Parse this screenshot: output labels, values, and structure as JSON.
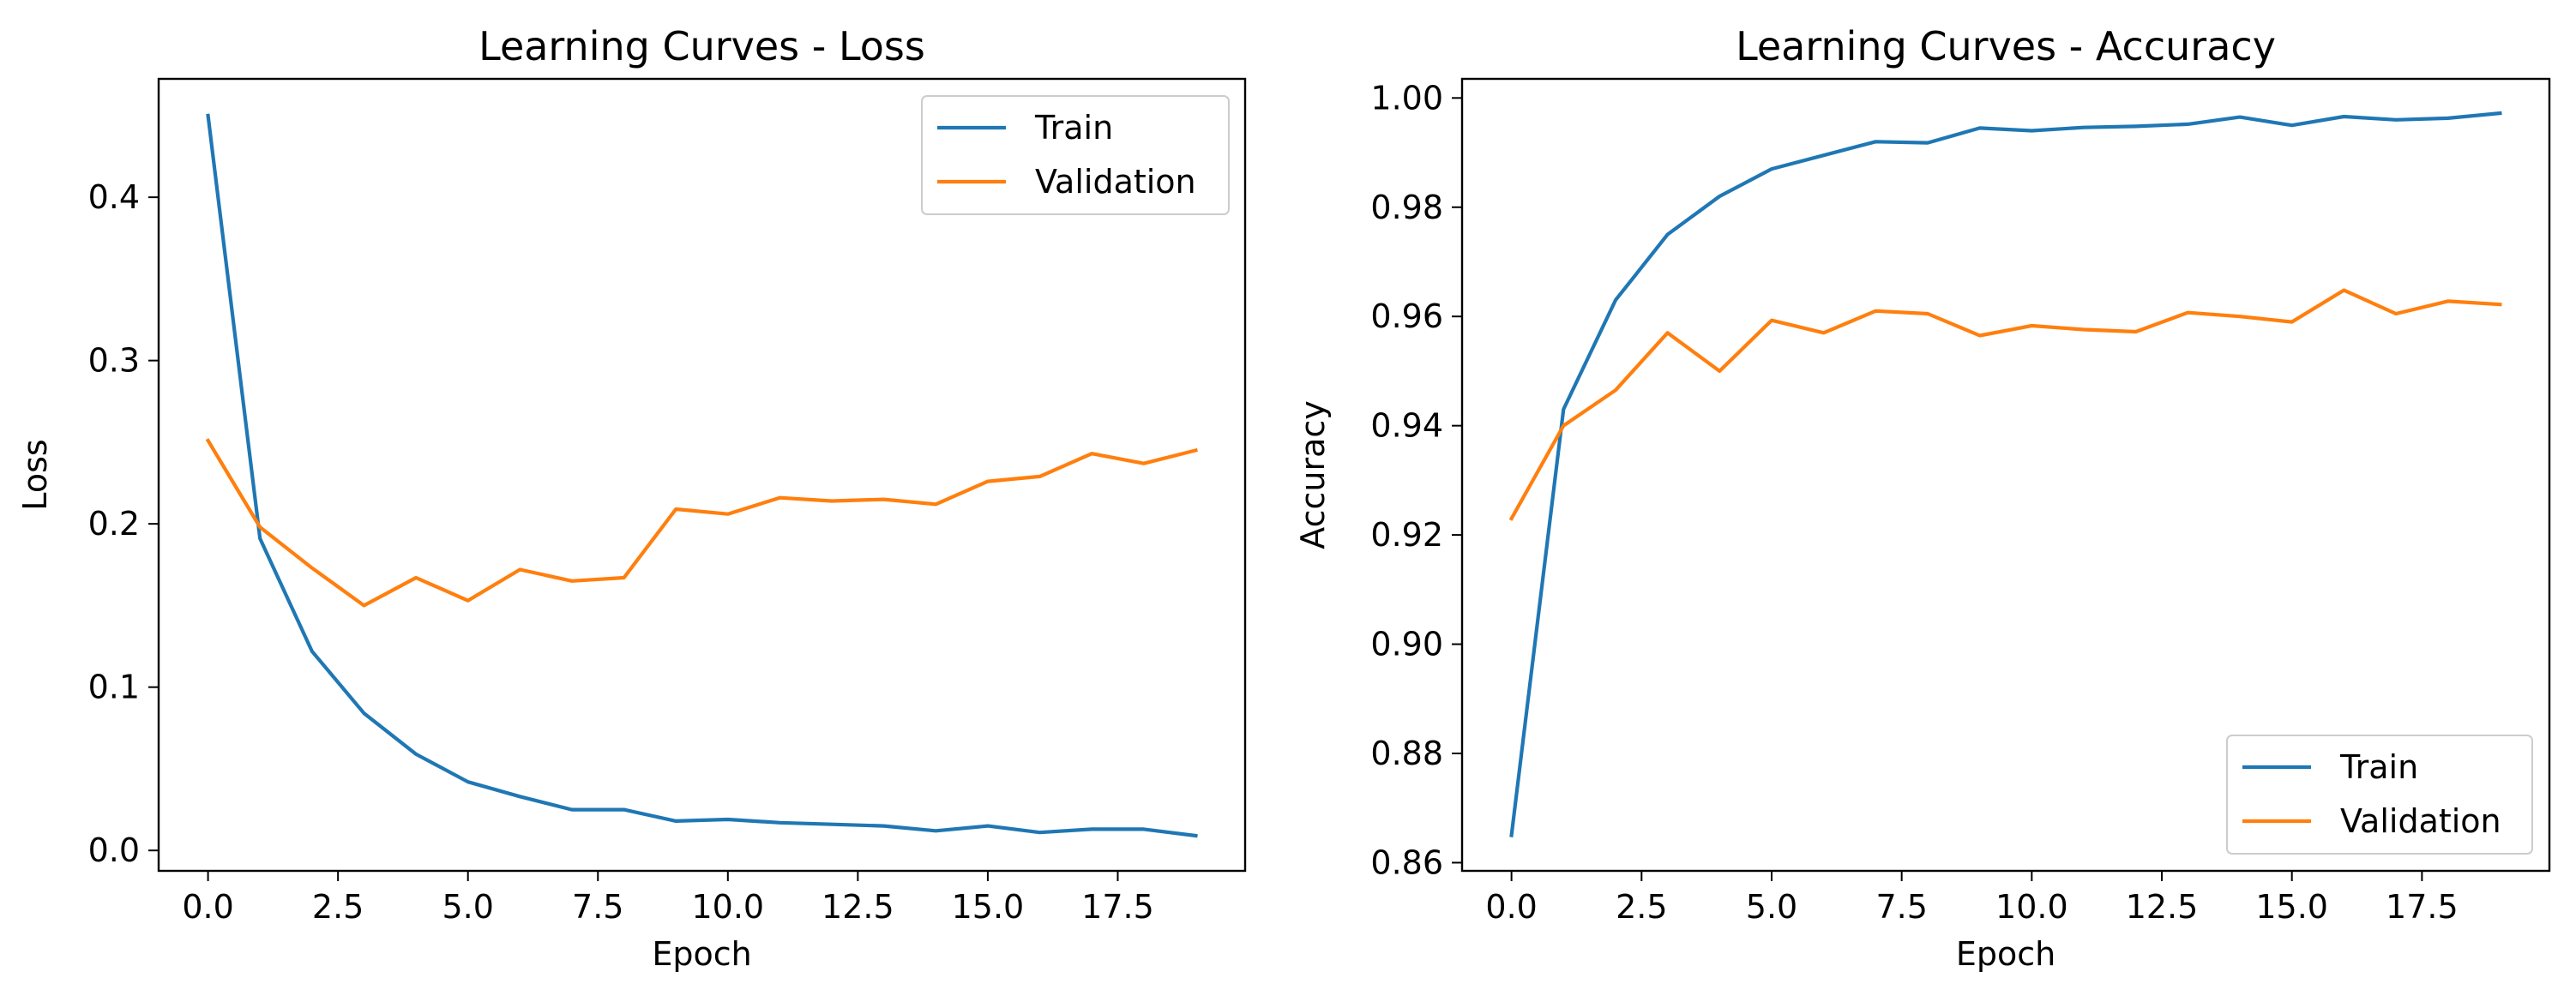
{
  "chart_data": [
    {
      "type": "line",
      "title": "Learning Curves - Loss",
      "xlabel": "Epoch",
      "ylabel": "Loss",
      "xlim": [
        -0.95,
        19.95
      ],
      "ylim": [
        -0.0125,
        0.4725
      ],
      "xticks": [
        0.0,
        2.5,
        5.0,
        7.5,
        10.0,
        12.5,
        15.0,
        17.5
      ],
      "xtick_labels": [
        "0.0",
        "2.5",
        "5.0",
        "7.5",
        "10.0",
        "12.5",
        "15.0",
        "17.5"
      ],
      "yticks": [
        0.0,
        0.1,
        0.2,
        0.3,
        0.4
      ],
      "ytick_labels": [
        "0.0",
        "0.1",
        "0.2",
        "0.3",
        "0.4"
      ],
      "legend": "top-right",
      "grid": false,
      "x": [
        0,
        1,
        2,
        3,
        4,
        5,
        6,
        7,
        8,
        9,
        10,
        11,
        12,
        13,
        14,
        15,
        16,
        17,
        18,
        19
      ],
      "series": [
        {
          "name": "Train",
          "color": "#1f77b4",
          "values": [
            0.45,
            0.191,
            0.122,
            0.084,
            0.059,
            0.042,
            0.033,
            0.025,
            0.025,
            0.018,
            0.019,
            0.017,
            0.016,
            0.015,
            0.012,
            0.015,
            0.011,
            0.013,
            0.013,
            0.009
          ]
        },
        {
          "name": "Validation",
          "color": "#ff7f0e",
          "values": [
            0.251,
            0.198,
            0.173,
            0.15,
            0.167,
            0.153,
            0.172,
            0.165,
            0.167,
            0.209,
            0.206,
            0.216,
            0.214,
            0.215,
            0.212,
            0.226,
            0.229,
            0.243,
            0.237,
            0.245
          ]
        }
      ]
    },
    {
      "type": "line",
      "title": "Learning Curves - Accuracy",
      "xlabel": "Epoch",
      "ylabel": "Accuracy",
      "xlim": [
        -0.95,
        19.95
      ],
      "ylim": [
        0.8585,
        1.0035
      ],
      "xticks": [
        0.0,
        2.5,
        5.0,
        7.5,
        10.0,
        12.5,
        15.0,
        17.5
      ],
      "xtick_labels": [
        "0.0",
        "2.5",
        "5.0",
        "7.5",
        "10.0",
        "12.5",
        "15.0",
        "17.5"
      ],
      "yticks": [
        0.86,
        0.88,
        0.9,
        0.92,
        0.94,
        0.96,
        0.98,
        1.0
      ],
      "ytick_labels": [
        "0.86",
        "0.88",
        "0.90",
        "0.92",
        "0.94",
        "0.96",
        "0.98",
        "1.00"
      ],
      "legend": "bottom-right",
      "grid": false,
      "x": [
        0,
        1,
        2,
        3,
        4,
        5,
        6,
        7,
        8,
        9,
        10,
        11,
        12,
        13,
        14,
        15,
        16,
        17,
        18,
        19
      ],
      "series": [
        {
          "name": "Train",
          "color": "#1f77b4",
          "values": [
            0.865,
            0.943,
            0.963,
            0.975,
            0.982,
            0.987,
            0.9895,
            0.992,
            0.9918,
            0.9945,
            0.994,
            0.9946,
            0.9948,
            0.9952,
            0.9965,
            0.995,
            0.9966,
            0.996,
            0.9963,
            0.9972
          ]
        },
        {
          "name": "Validation",
          "color": "#ff7f0e",
          "values": [
            0.923,
            0.94,
            0.9465,
            0.957,
            0.95,
            0.9593,
            0.957,
            0.961,
            0.9605,
            0.9565,
            0.9583,
            0.9576,
            0.9572,
            0.9607,
            0.96,
            0.959,
            0.9648,
            0.9605,
            0.9628,
            0.9622
          ]
        }
      ]
    }
  ]
}
